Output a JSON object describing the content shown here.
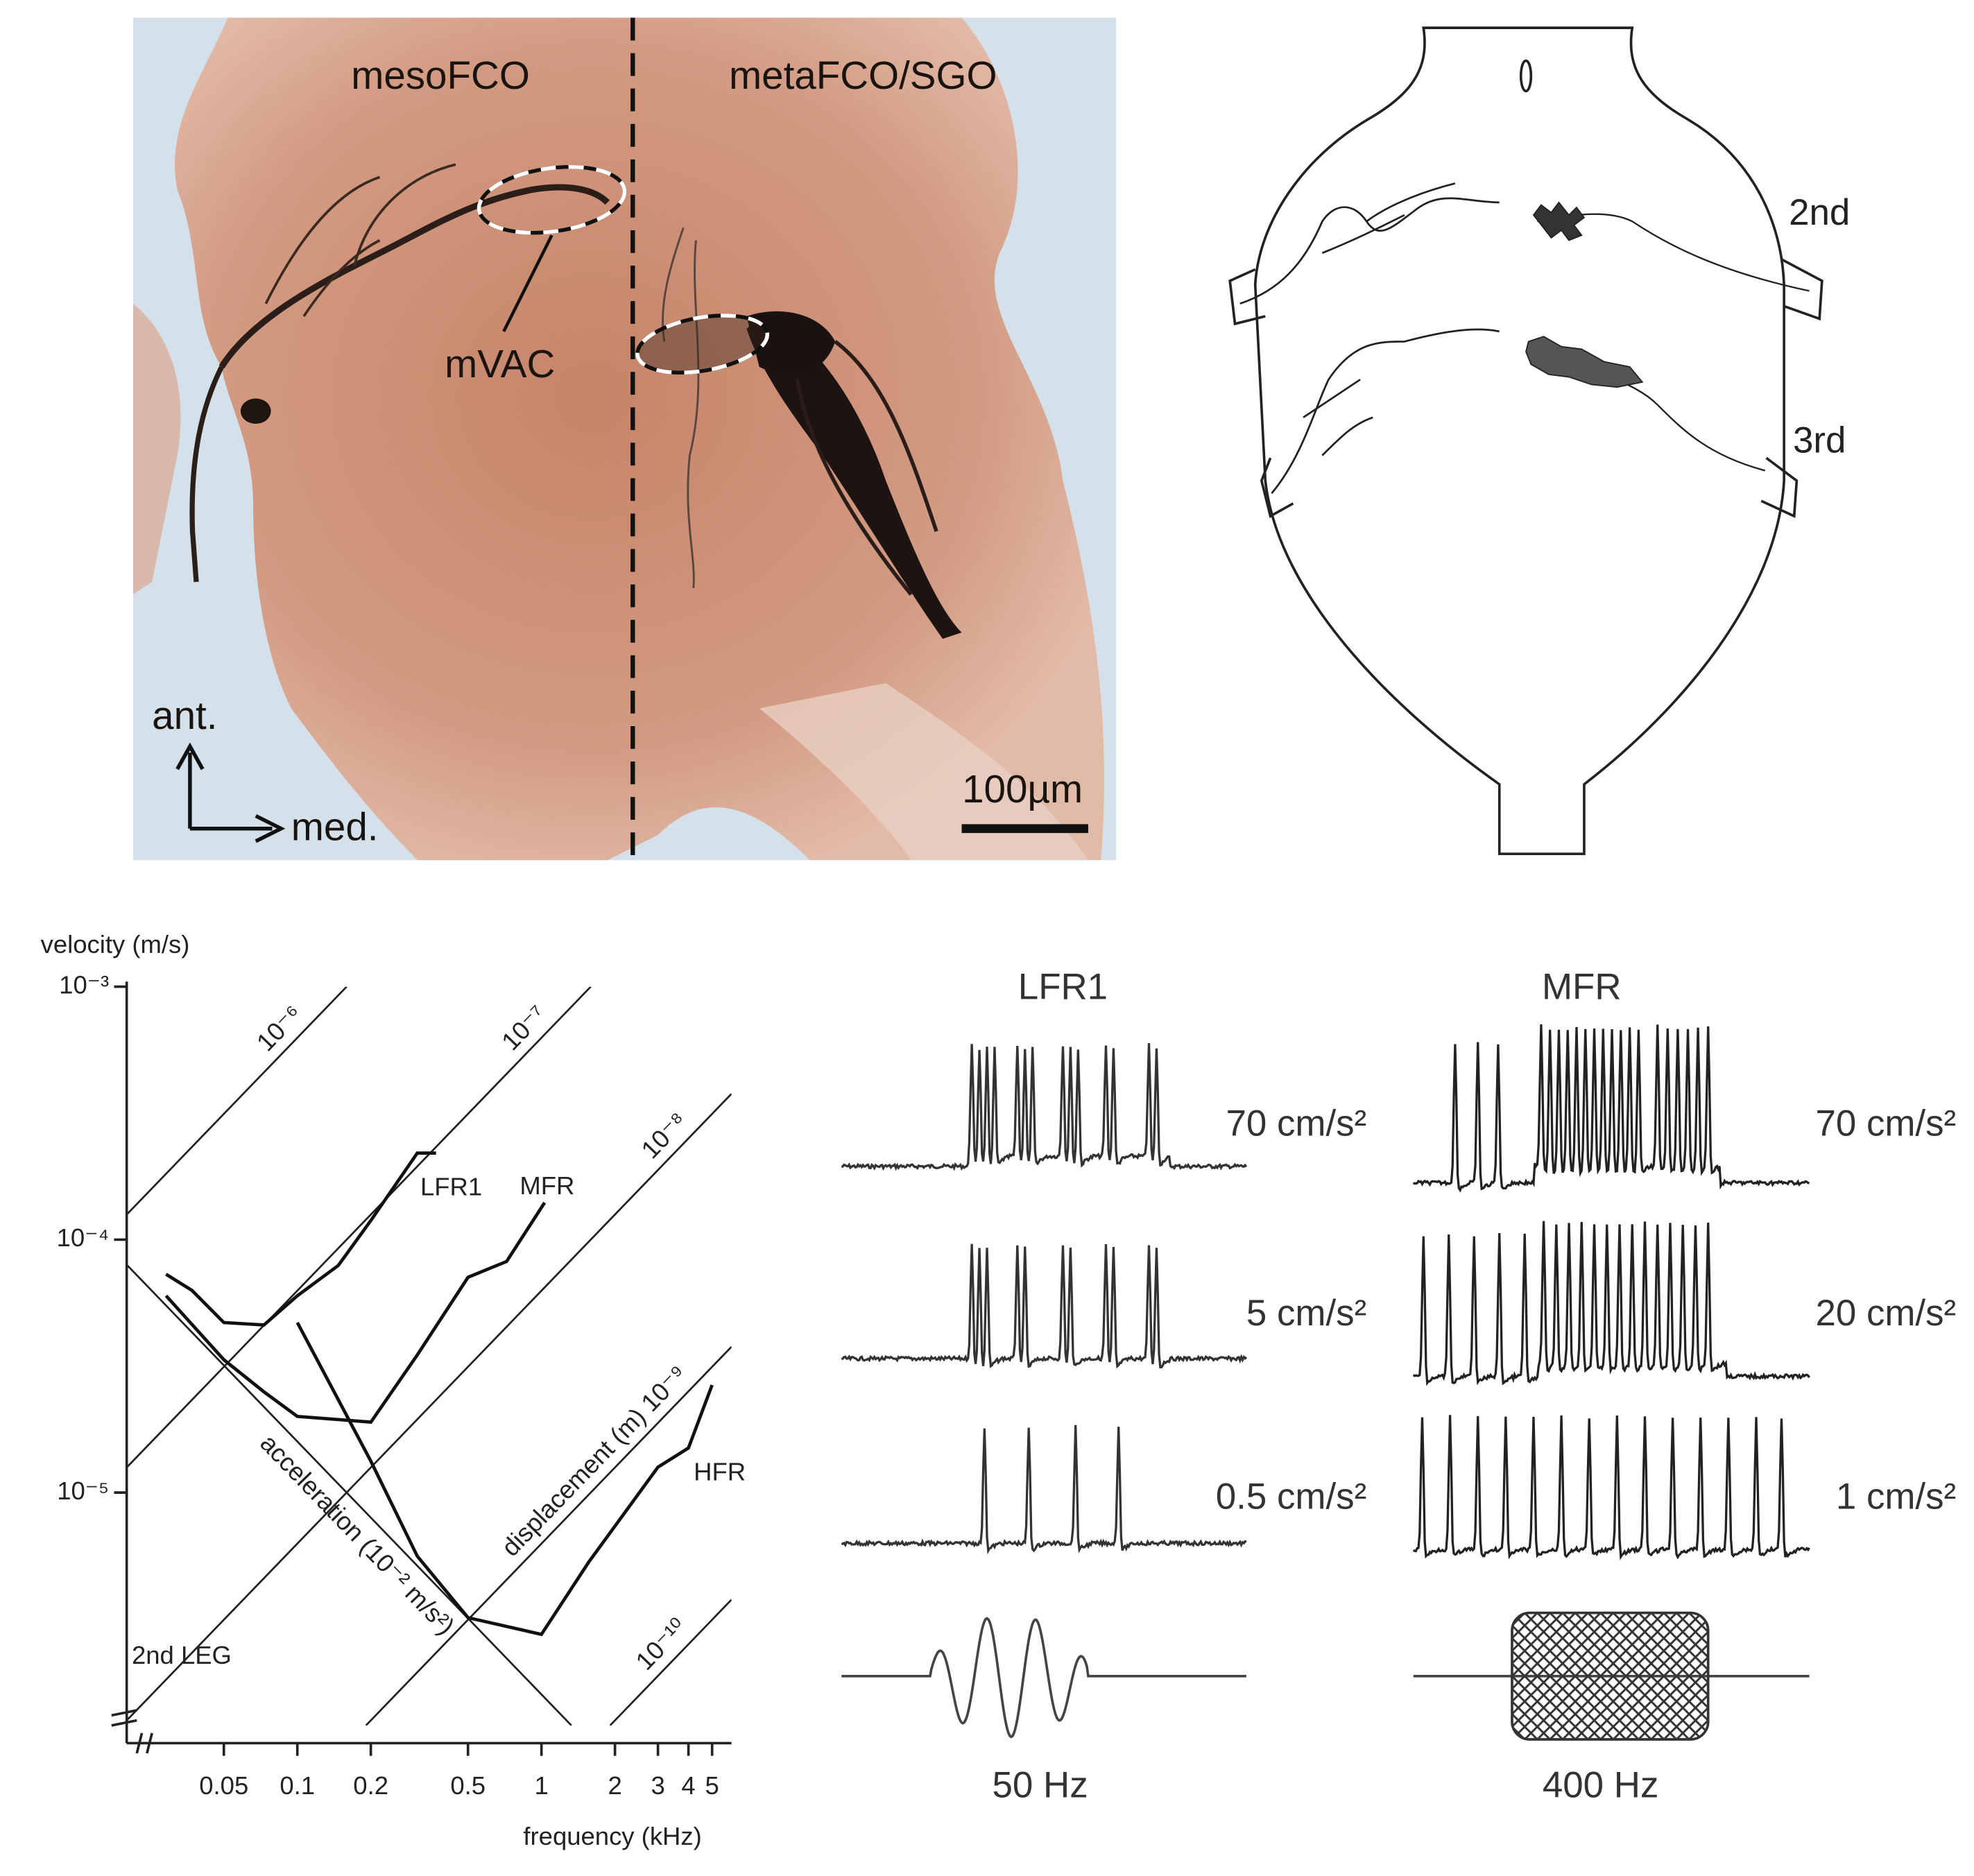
{
  "photo": {
    "left_label": "mesoFCO",
    "right_label": "metaFCO/SGO",
    "region_label": "mVAC",
    "axis_anterior": "ant.",
    "axis_medial": "med.",
    "scale_bar": "100µm"
  },
  "diagram": {
    "labels": [
      "2nd",
      "3rd"
    ]
  },
  "chart_data": {
    "type": "line",
    "x_label": "frequency (kHz)",
    "y_label": "velocity (m/s)",
    "annotation": "2nd LEG",
    "log_x": true,
    "log_y": true,
    "xlim": [
      0.02,
      6
    ],
    "ylim": [
      1.2e-06,
      0.001
    ],
    "xticks": [
      0.05,
      0.1,
      0.2,
      0.5,
      1,
      2,
      3,
      4,
      5
    ],
    "yticks": [
      {
        "value": 0.001,
        "label": "10⁻³"
      },
      {
        "value": 0.0001,
        "label": "10⁻⁴"
      },
      {
        "value": 1e-05,
        "label": "10⁻⁵"
      }
    ],
    "displacement_lines": [
      {
        "value": 1e-06,
        "label": "10⁻⁶"
      },
      {
        "value": 1e-07,
        "label": "10⁻⁷"
      },
      {
        "value": 1e-08,
        "label": "10⁻⁸"
      },
      {
        "value": 1e-09,
        "label": "displacement (m) 10⁻⁹"
      },
      {
        "value": 1e-10,
        "label": "10⁻¹⁰"
      }
    ],
    "acceleration_line": {
      "value": 0.01,
      "label": "acceleration (10⁻² m/s²)"
    },
    "series": [
      {
        "name": "LFR1",
        "color": "#111111",
        "x": [
          0.029,
          0.037,
          0.05,
          0.073,
          0.1,
          0.147,
          0.2,
          0.31,
          0.37
        ],
        "values": [
          7.3e-05,
          6.3e-05,
          4.7e-05,
          4.6e-05,
          6e-05,
          7.9e-05,
          0.000119,
          0.00022,
          0.00022
        ]
      },
      {
        "name": "MFR",
        "color": "#111111",
        "x": [
          0.029,
          0.05,
          0.073,
          0.1,
          0.2,
          0.31,
          0.5,
          0.72,
          1.03
        ],
        "values": [
          6e-05,
          3.35e-05,
          2.5e-05,
          2e-05,
          1.9e-05,
          3.5e-05,
          7.1e-05,
          8.2e-05,
          0.00014
        ]
      },
      {
        "name": "HFR",
        "color": "#111111",
        "x": [
          0.1,
          0.2,
          0.31,
          0.5,
          1,
          1.56,
          3,
          4,
          5
        ],
        "values": [
          4.7e-05,
          1.33e-05,
          5.6e-06,
          3.2e-06,
          2.75e-06,
          5.3e-06,
          1.26e-05,
          1.5e-05,
          2.66e-05
        ]
      }
    ]
  },
  "recordings": [
    {
      "title": "LFR1",
      "traces": [
        "70 cm/s²",
        "5 cm/s²",
        "0.5 cm/s²"
      ],
      "stimulus": "50 Hz"
    },
    {
      "title": "MFR",
      "traces": [
        "70 cm/s²",
        "20 cm/s²",
        "1 cm/s²"
      ],
      "stimulus": "400 Hz"
    }
  ]
}
